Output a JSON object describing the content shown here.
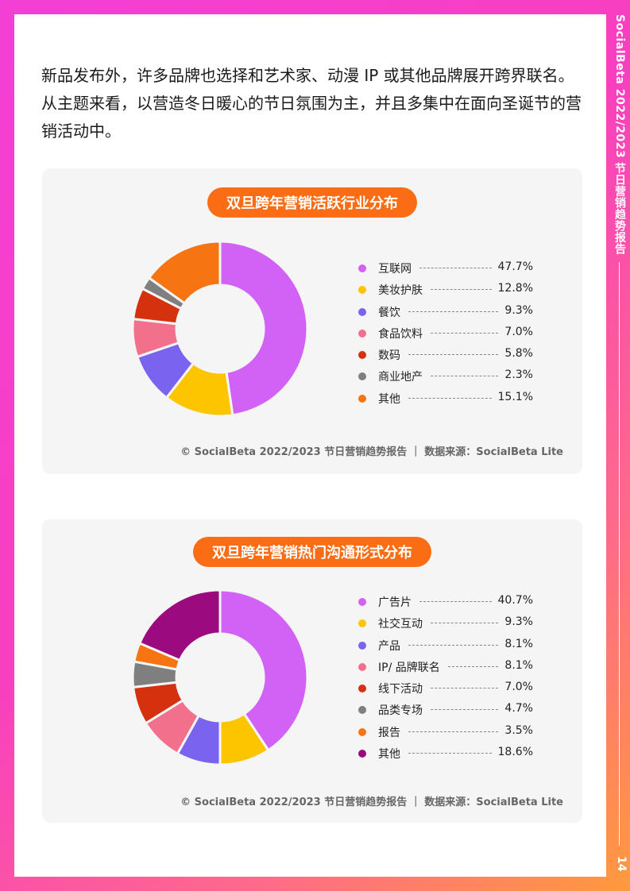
{
  "side": {
    "title": "SocialBeta 2022/2023 节日营销趋势报告",
    "page_number": "14"
  },
  "intro": "新品发布外，许多品牌也选择和艺术家、动漫 IP 或其他品牌展开跨界联名。从主题来看，以营造冬日暖心的节日氛围为主，并且多集中在面向圣诞节的营销活动中。",
  "chart_data": [
    {
      "type": "pie",
      "title": "双旦跨年营销活跃行业分布",
      "categories": [
        "互联网",
        "美妆护肤",
        "餐饮",
        "食品饮料",
        "数码",
        "商业地产",
        "其他"
      ],
      "values": [
        47.7,
        12.8,
        9.3,
        7.0,
        5.8,
        2.3,
        15.1
      ],
      "value_labels": [
        "47.7%",
        "12.8%",
        "9.3%",
        "7.0%",
        "5.8%",
        "2.3%",
        "15.1%"
      ],
      "colors": [
        "#d162f5",
        "#fcc500",
        "#7a63ef",
        "#f2708b",
        "#d6310e",
        "#7f7f7f",
        "#f77412"
      ],
      "legend": "right",
      "footer": "© SocialBeta 2022/2023 节日营销趋势报告 ｜ 数据来源：SocialBeta Lite"
    },
    {
      "type": "pie",
      "title": "双旦跨年营销热门沟通形式分布",
      "categories": [
        "广告片",
        "社交互动",
        "产品",
        "IP/ 品牌联名",
        "线下活动",
        "品类专场",
        "报告",
        "其他"
      ],
      "values": [
        40.7,
        9.3,
        8.1,
        8.1,
        7.0,
        4.7,
        3.5,
        18.6
      ],
      "value_labels": [
        "40.7%",
        "9.3%",
        "8.1%",
        "8.1%",
        "7.0%",
        "4.7%",
        "3.5%",
        "18.6%"
      ],
      "colors": [
        "#d162f5",
        "#fcc500",
        "#7a63ef",
        "#f2708b",
        "#d6310e",
        "#7f7f7f",
        "#f77412",
        "#9b0a7f"
      ],
      "legend": "right",
      "footer": "© SocialBeta 2022/2023 节日营销趋势报告 ｜ 数据来源：SocialBeta Lite"
    }
  ]
}
